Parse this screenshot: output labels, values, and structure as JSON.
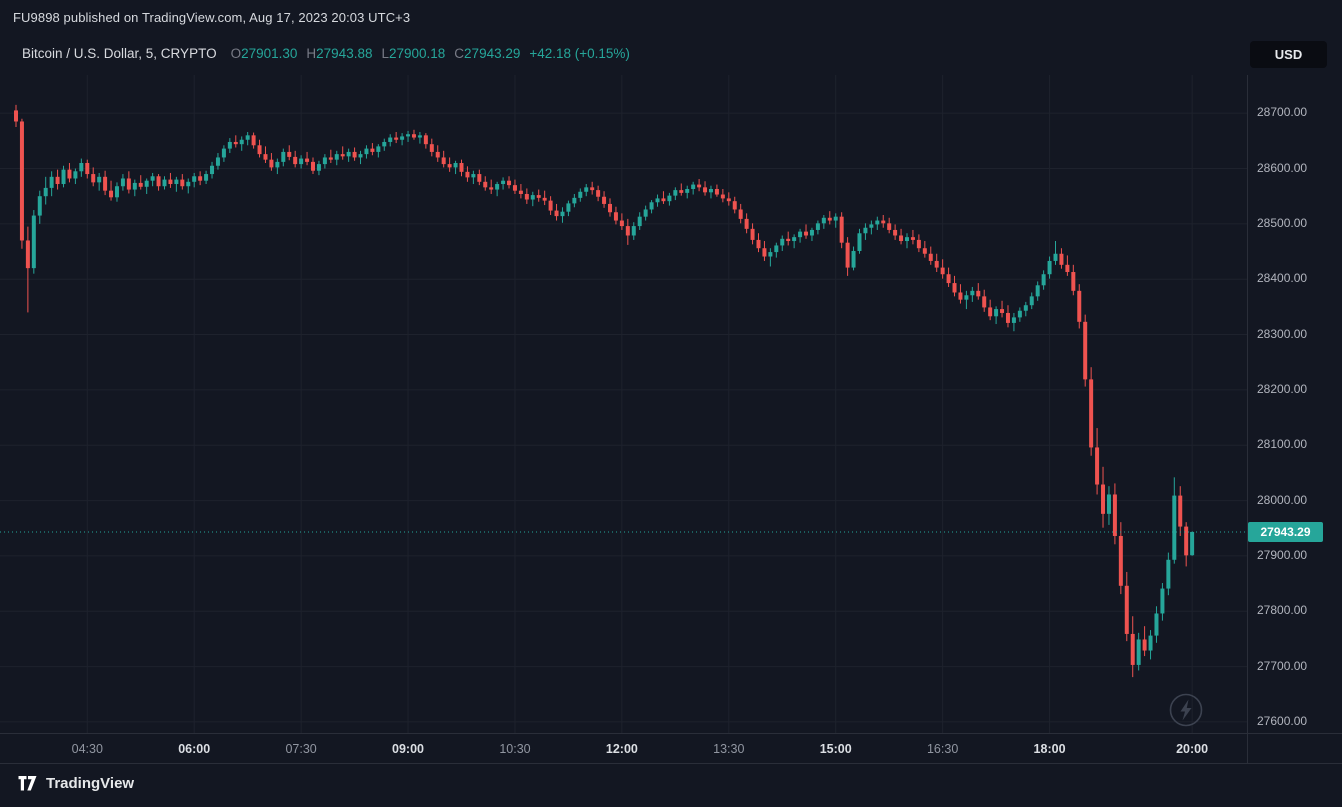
{
  "attribution": {
    "text": "FU9898 published on TradingView.com, Aug 17, 2023 20:03 UTC+3"
  },
  "header": {
    "title": "Bitcoin / U.S. Dollar, 5, CRYPTO",
    "o_label": "O",
    "o_value": "27901.30",
    "h_label": "H",
    "h_value": "27943.88",
    "l_label": "L",
    "l_value": "27900.18",
    "c_label": "C",
    "c_value": "27943.29",
    "change": "+42.18 (+0.15%)",
    "currency": "USD"
  },
  "footer": {
    "brand": "TradingView"
  },
  "colors": {
    "background": "#131722",
    "grid": "#1e222d",
    "axis_border": "#2a2e39",
    "axis_text": "#b2b5be",
    "up": "#26a69a",
    "down": "#ef5350",
    "last_price_label_bg": "#26a69a"
  },
  "chart_data": {
    "type": "candlestick",
    "title": "Bitcoin / U.S. Dollar, 5, CRYPTO",
    "interval_minutes": 5,
    "start_time": "03:30",
    "grid": true,
    "up_color": "#26a69a",
    "down_color": "#ef5350",
    "last": {
      "open": 27901.3,
      "high": 27943.88,
      "low": 27900.18,
      "close": 27943.29,
      "change_abs": 42.18,
      "change_pct": 0.15
    },
    "last_price_label": "27943.29",
    "y_axis": {
      "min": 27580,
      "max": 28769,
      "labels": [
        "28700.00",
        "28600.00",
        "28500.00",
        "28400.00",
        "28300.00",
        "28200.00",
        "28100.00",
        "28000.00",
        "27900.00",
        "27800.00",
        "27700.00",
        "27600.00"
      ]
    },
    "x_ticks": [
      {
        "label": "04:30",
        "major": false
      },
      {
        "label": "06:00",
        "major": true
      },
      {
        "label": "07:30",
        "major": false
      },
      {
        "label": "09:00",
        "major": true
      },
      {
        "label": "10:30",
        "major": false
      },
      {
        "label": "12:00",
        "major": true
      },
      {
        "label": "13:30",
        "major": false
      },
      {
        "label": "15:00",
        "major": true
      },
      {
        "label": "16:30",
        "major": false
      },
      {
        "label": "18:00",
        "major": true
      },
      {
        "label": "20:00",
        "major": true
      }
    ],
    "candles": [
      [
        28705,
        28715,
        28675,
        28685
      ],
      [
        28685,
        28690,
        28455,
        28470
      ],
      [
        28470,
        28495,
        28340,
        28420
      ],
      [
        28420,
        28525,
        28410,
        28515
      ],
      [
        28515,
        28560,
        28500,
        28550
      ],
      [
        28550,
        28585,
        28535,
        28565
      ],
      [
        28565,
        28595,
        28550,
        28585
      ],
      [
        28585,
        28598,
        28562,
        28572
      ],
      [
        28572,
        28605,
        28566,
        28598
      ],
      [
        28598,
        28610,
        28575,
        28582
      ],
      [
        28582,
        28600,
        28572,
        28595
      ],
      [
        28595,
        28618,
        28585,
        28610
      ],
      [
        28610,
        28616,
        28582,
        28590
      ],
      [
        28590,
        28602,
        28568,
        28575
      ],
      [
        28575,
        28592,
        28560,
        28585
      ],
      [
        28585,
        28596,
        28552,
        28560
      ],
      [
        28560,
        28578,
        28542,
        28548
      ],
      [
        28548,
        28575,
        28540,
        28568
      ],
      [
        28568,
        28590,
        28560,
        28582
      ],
      [
        28582,
        28595,
        28555,
        28562
      ],
      [
        28562,
        28580,
        28550,
        28574
      ],
      [
        28574,
        28588,
        28562,
        28567
      ],
      [
        28567,
        28582,
        28554,
        28578
      ],
      [
        28578,
        28592,
        28568,
        28586
      ],
      [
        28586,
        28590,
        28560,
        28568
      ],
      [
        28568,
        28586,
        28562,
        28580
      ],
      [
        28580,
        28592,
        28565,
        28572
      ],
      [
        28572,
        28585,
        28558,
        28580
      ],
      [
        28580,
        28590,
        28562,
        28568
      ],
      [
        28568,
        28582,
        28555,
        28576
      ],
      [
        28576,
        28592,
        28566,
        28586
      ],
      [
        28586,
        28595,
        28570,
        28578
      ],
      [
        28578,
        28596,
        28572,
        28590
      ],
      [
        28590,
        28612,
        28582,
        28605
      ],
      [
        28605,
        28628,
        28598,
        28620
      ],
      [
        28620,
        28642,
        28612,
        28636
      ],
      [
        28636,
        28655,
        28628,
        28648
      ],
      [
        28648,
        28660,
        28638,
        28644
      ],
      [
        28644,
        28658,
        28632,
        28652
      ],
      [
        28652,
        28666,
        28642,
        28660
      ],
      [
        28660,
        28665,
        28636,
        28642
      ],
      [
        28642,
        28652,
        28620,
        28626
      ],
      [
        28626,
        28640,
        28610,
        28616
      ],
      [
        28616,
        28628,
        28596,
        28602
      ],
      [
        28602,
        28618,
        28590,
        28612
      ],
      [
        28612,
        28636,
        28604,
        28630
      ],
      [
        28630,
        28642,
        28615,
        28621
      ],
      [
        28621,
        28632,
        28602,
        28608
      ],
      [
        28608,
        28624,
        28600,
        28618
      ],
      [
        28618,
        28630,
        28606,
        28612
      ],
      [
        28612,
        28620,
        28590,
        28596
      ],
      [
        28596,
        28614,
        28588,
        28608
      ],
      [
        28608,
        28626,
        28600,
        28620
      ],
      [
        28620,
        28634,
        28610,
        28616
      ],
      [
        28616,
        28632,
        28606,
        28626
      ],
      [
        28626,
        28640,
        28616,
        28622
      ],
      [
        28622,
        28636,
        28612,
        28630
      ],
      [
        28630,
        28638,
        28614,
        28620
      ],
      [
        28620,
        28632,
        28608,
        28626
      ],
      [
        28626,
        28642,
        28618,
        28636
      ],
      [
        28636,
        28646,
        28624,
        28630
      ],
      [
        28630,
        28644,
        28620,
        28640
      ],
      [
        28640,
        28654,
        28632,
        28648
      ],
      [
        28648,
        28662,
        28640,
        28656
      ],
      [
        28656,
        28666,
        28646,
        28652
      ],
      [
        28652,
        28664,
        28642,
        28658
      ],
      [
        28658,
        28668,
        28648,
        28662
      ],
      [
        28662,
        28670,
        28652,
        28656
      ],
      [
        28656,
        28666,
        28645,
        28660
      ],
      [
        28660,
        28664,
        28636,
        28644
      ],
      [
        28644,
        28654,
        28622,
        28630
      ],
      [
        28630,
        28642,
        28612,
        28620
      ],
      [
        28620,
        28632,
        28602,
        28608
      ],
      [
        28608,
        28620,
        28594,
        28602
      ],
      [
        28602,
        28614,
        28590,
        28610
      ],
      [
        28610,
        28616,
        28586,
        28594
      ],
      [
        28594,
        28604,
        28576,
        28584
      ],
      [
        28584,
        28596,
        28572,
        28590
      ],
      [
        28590,
        28598,
        28570,
        28576
      ],
      [
        28576,
        28586,
        28560,
        28566
      ],
      [
        28566,
        28580,
        28554,
        28562
      ],
      [
        28562,
        28576,
        28550,
        28572
      ],
      [
        28572,
        28584,
        28562,
        28578
      ],
      [
        28578,
        28586,
        28564,
        28570
      ],
      [
        28570,
        28580,
        28554,
        28560
      ],
      [
        28560,
        28572,
        28546,
        28554
      ],
      [
        28554,
        28564,
        28536,
        28544
      ],
      [
        28544,
        28558,
        28532,
        28552
      ],
      [
        28552,
        28562,
        28540,
        28547
      ],
      [
        28547,
        28560,
        28534,
        28542
      ],
      [
        28542,
        28550,
        28516,
        28524
      ],
      [
        28524,
        28536,
        28506,
        28514
      ],
      [
        28514,
        28530,
        28502,
        28522
      ],
      [
        28522,
        28542,
        28514,
        28537
      ],
      [
        28537,
        28554,
        28530,
        28547
      ],
      [
        28547,
        28564,
        28540,
        28558
      ],
      [
        28558,
        28572,
        28550,
        28566
      ],
      [
        28566,
        28576,
        28553,
        28561
      ],
      [
        28561,
        28569,
        28541,
        28549
      ],
      [
        28549,
        28559,
        28529,
        28536
      ],
      [
        28536,
        28546,
        28513,
        28521
      ],
      [
        28521,
        28531,
        28499,
        28506
      ],
      [
        28506,
        28519,
        28489,
        28496
      ],
      [
        28496,
        28509,
        28462,
        28479
      ],
      [
        28479,
        28503,
        28471,
        28496
      ],
      [
        28496,
        28521,
        28489,
        28513
      ],
      [
        28513,
        28533,
        28506,
        28526
      ],
      [
        28526,
        28543,
        28519,
        28539
      ],
      [
        28539,
        28553,
        28531,
        28546
      ],
      [
        28546,
        28559,
        28536,
        28541
      ],
      [
        28541,
        28556,
        28533,
        28551
      ],
      [
        28551,
        28566,
        28543,
        28561
      ],
      [
        28561,
        28573,
        28551,
        28556
      ],
      [
        28556,
        28569,
        28546,
        28563
      ],
      [
        28563,
        28576,
        28553,
        28571
      ],
      [
        28571,
        28581,
        28559,
        28566
      ],
      [
        28566,
        28577,
        28551,
        28557
      ],
      [
        28557,
        28569,
        28546,
        28563
      ],
      [
        28563,
        28571,
        28549,
        28553
      ],
      [
        28553,
        28563,
        28539,
        28546
      ],
      [
        28546,
        28557,
        28533,
        28541
      ],
      [
        28541,
        28549,
        28519,
        28526
      ],
      [
        28526,
        28536,
        28501,
        28509
      ],
      [
        28509,
        28519,
        28483,
        28491
      ],
      [
        28491,
        28501,
        28463,
        28471
      ],
      [
        28471,
        28483,
        28449,
        28456
      ],
      [
        28456,
        28469,
        28433,
        28441
      ],
      [
        28441,
        28456,
        28423,
        28449
      ],
      [
        28449,
        28466,
        28439,
        28461
      ],
      [
        28461,
        28479,
        28451,
        28473
      ],
      [
        28473,
        28486,
        28461,
        28469
      ],
      [
        28469,
        28481,
        28456,
        28476
      ],
      [
        28476,
        28491,
        28466,
        28486
      ],
      [
        28486,
        28499,
        28473,
        28479
      ],
      [
        28479,
        28493,
        28469,
        28489
      ],
      [
        28489,
        28506,
        28481,
        28501
      ],
      [
        28501,
        28516,
        28491,
        28511
      ],
      [
        28511,
        28523,
        28499,
        28506
      ],
      [
        28506,
        28519,
        28493,
        28513
      ],
      [
        28513,
        28521,
        28456,
        28466
      ],
      [
        28466,
        28476,
        28406,
        28421
      ],
      [
        28421,
        28459,
        28416,
        28451
      ],
      [
        28451,
        28491,
        28446,
        28483
      ],
      [
        28483,
        28501,
        28471,
        28493
      ],
      [
        28493,
        28506,
        28481,
        28499
      ],
      [
        28499,
        28513,
        28489,
        28506
      ],
      [
        28506,
        28516,
        28493,
        28501
      ],
      [
        28501,
        28511,
        28483,
        28489
      ],
      [
        28489,
        28499,
        28471,
        28479
      ],
      [
        28479,
        28491,
        28463,
        28469
      ],
      [
        28469,
        28483,
        28456,
        28476
      ],
      [
        28476,
        28489,
        28463,
        28471
      ],
      [
        28471,
        28481,
        28449,
        28456
      ],
      [
        28456,
        28469,
        28439,
        28446
      ],
      [
        28446,
        28459,
        28426,
        28433
      ],
      [
        28433,
        28446,
        28413,
        28421
      ],
      [
        28421,
        28436,
        28401,
        28409
      ],
      [
        28409,
        28421,
        28386,
        28393
      ],
      [
        28393,
        28406,
        28369,
        28376
      ],
      [
        28376,
        28391,
        28356,
        28363
      ],
      [
        28363,
        28379,
        28346,
        28371
      ],
      [
        28371,
        28386,
        28359,
        28379
      ],
      [
        28379,
        28393,
        28363,
        28369
      ],
      [
        28369,
        28381,
        28341,
        28349
      ],
      [
        28349,
        28363,
        28326,
        28333
      ],
      [
        28333,
        28351,
        28319,
        28346
      ],
      [
        28346,
        28361,
        28331,
        28339
      ],
      [
        28339,
        28353,
        28313,
        28321
      ],
      [
        28321,
        28339,
        28306,
        28331
      ],
      [
        28331,
        28349,
        28323,
        28343
      ],
      [
        28343,
        28359,
        28333,
        28353
      ],
      [
        28353,
        28376,
        28346,
        28369
      ],
      [
        28369,
        28396,
        28361,
        28389
      ],
      [
        28389,
        28416,
        28381,
        28409
      ],
      [
        28409,
        28441,
        28401,
        28433
      ],
      [
        28433,
        28469,
        28426,
        28446
      ],
      [
        28446,
        28456,
        28419,
        28426
      ],
      [
        28426,
        28443,
        28406,
        28413
      ],
      [
        28413,
        28426,
        28371,
        28379
      ],
      [
        28379,
        28391,
        28311,
        28323
      ],
      [
        28323,
        28336,
        28206,
        28219
      ],
      [
        28219,
        28241,
        28081,
        28096
      ],
      [
        28096,
        28131,
        28011,
        28029
      ],
      [
        28029,
        28061,
        27951,
        27976
      ],
      [
        27976,
        28026,
        27956,
        28011
      ],
      [
        28011,
        28031,
        27921,
        27936
      ],
      [
        27936,
        27961,
        27831,
        27846
      ],
      [
        27846,
        27871,
        27746,
        27759
      ],
      [
        27759,
        27791,
        27681,
        27703
      ],
      [
        27703,
        27761,
        27693,
        27749
      ],
      [
        27749,
        27773,
        27719,
        27729
      ],
      [
        27729,
        27766,
        27713,
        27756
      ],
      [
        27756,
        27809,
        27743,
        27796
      ],
      [
        27796,
        27851,
        27783,
        27841
      ],
      [
        27841,
        27906,
        27829,
        27893
      ],
      [
        27893,
        28042,
        27886,
        28009
      ],
      [
        28009,
        28026,
        27936,
        27953
      ],
      [
        27953,
        27961,
        27881,
        27901
      ],
      [
        27901.3,
        27943.88,
        27900.18,
        27943.29
      ]
    ]
  }
}
